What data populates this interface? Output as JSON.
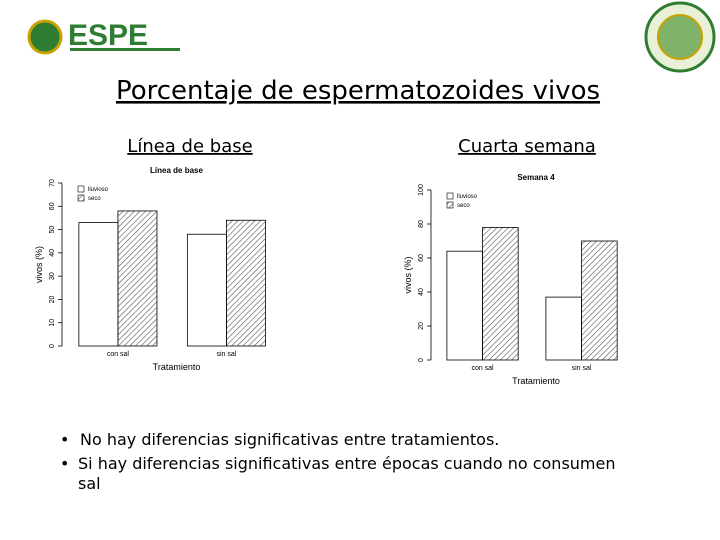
{
  "header": {
    "logo_text": "ESPE",
    "title": "Porcentaje de espermatozoides vivos"
  },
  "subtitles": [
    "Línea de base",
    "Cuarta semana"
  ],
  "chart_data": [
    {
      "type": "bar",
      "title": "Línea de base",
      "x_label": "Tratamiento",
      "y_label": "vivos (%)",
      "categories": [
        "con sal",
        "sin sal"
      ],
      "series": [
        {
          "name": "lluvioso",
          "color": "#ffffff",
          "values": [
            53,
            48
          ]
        },
        {
          "name": "seco",
          "color": "#555555",
          "pattern": "hatch",
          "values": [
            58,
            54
          ]
        }
      ],
      "ylim": [
        0,
        70
      ],
      "yticks": [
        0,
        10,
        20,
        30,
        40,
        50,
        60,
        70
      ],
      "legend": "top-left"
    },
    {
      "type": "bar",
      "title": "Semana 4",
      "x_label": "Tratamiento",
      "y_label": "vivos (%)",
      "categories": [
        "con sal",
        "sin sal"
      ],
      "series": [
        {
          "name": "lluvioso",
          "color": "#ffffff",
          "values": [
            64,
            37
          ]
        },
        {
          "name": "seco",
          "color": "#555555",
          "pattern": "hatch",
          "values": [
            78,
            70
          ]
        }
      ],
      "ylim": [
        0,
        100
      ],
      "yticks": [
        0,
        20,
        40,
        60,
        80,
        100
      ],
      "legend": "top-left"
    }
  ],
  "bullets": [
    "No hay diferencias significativas entre tratamientos.",
    "Si hay diferencias significativas entre épocas cuando no consumen sal"
  ]
}
